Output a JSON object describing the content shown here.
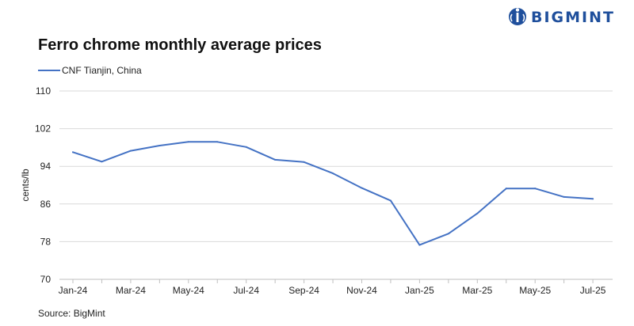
{
  "brand": {
    "name": "BIGMINT",
    "color": "#1f4f9c"
  },
  "chart_data": {
    "type": "line",
    "title": "Ferro chrome monthly average prices",
    "ylabel": "cents/lb",
    "xlabel": "",
    "ylim": [
      70,
      110
    ],
    "yticks": [
      70,
      78,
      86,
      94,
      102,
      110
    ],
    "grid": true,
    "legend_position": "top-left",
    "x": [
      "Jan-24",
      "Feb-24",
      "Mar-24",
      "Apr-24",
      "May-24",
      "Jun-24",
      "Jul-24",
      "Aug-24",
      "Sep-24",
      "Oct-24",
      "Nov-24",
      "Dec-24",
      "Jan-25",
      "Feb-25",
      "Mar-25",
      "Apr-25",
      "May-25",
      "Jun-25",
      "Jul-25"
    ],
    "xtick_labels": [
      "Jan-24",
      "Mar-24",
      "May-24",
      "Jul-24",
      "Sep-24",
      "Nov-24",
      "Jan-25",
      "Mar-25",
      "May-25",
      "Jul-25"
    ],
    "series": [
      {
        "name": "CNF Tianjin, China",
        "color": "#4472c4",
        "values": [
          97.0,
          95.0,
          97.3,
          98.4,
          99.2,
          99.2,
          98.1,
          95.4,
          94.9,
          92.5,
          89.4,
          86.7,
          77.3,
          79.7,
          84.0,
          89.3,
          89.3,
          87.5,
          87.1
        ]
      }
    ]
  },
  "source": "Source: BigMint"
}
